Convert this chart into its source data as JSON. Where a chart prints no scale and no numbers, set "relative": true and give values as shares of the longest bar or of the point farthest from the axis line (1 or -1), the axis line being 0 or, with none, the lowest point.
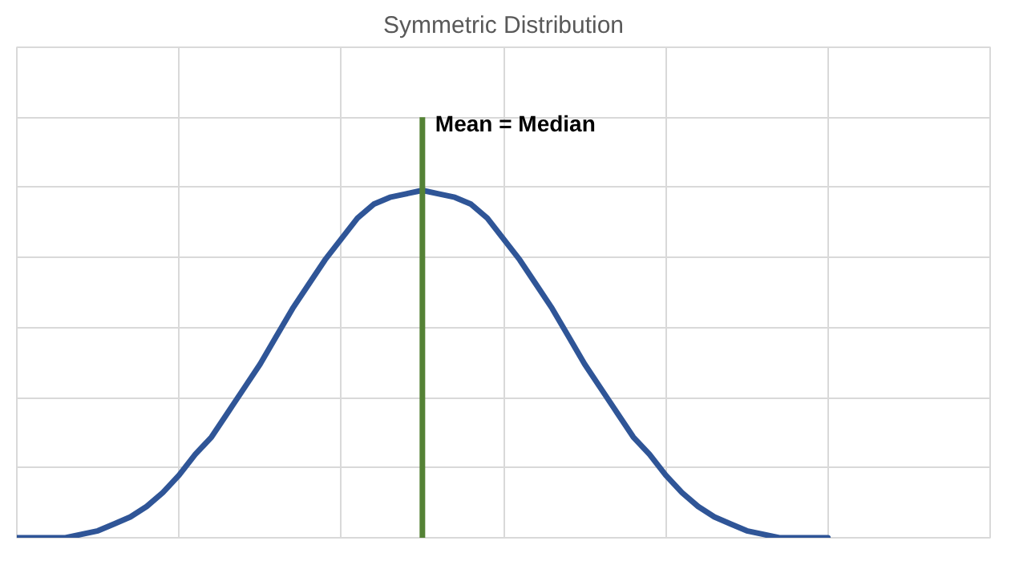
{
  "chart_data": {
    "type": "line",
    "title": "Symmetric Distribution",
    "relative": true,
    "grid": true,
    "categories": [
      null,
      null,
      null,
      null,
      null,
      null,
      null,
      null,
      null,
      null,
      null,
      null,
      null,
      null,
      null,
      null,
      null,
      null,
      null,
      null,
      null,
      null,
      null,
      null,
      null,
      null,
      null,
      null,
      null,
      null,
      null,
      null,
      null,
      null,
      null,
      null,
      null,
      null,
      null,
      null,
      null,
      null,
      null,
      null,
      null,
      null,
      null,
      null,
      null,
      null,
      null,
      null,
      null,
      null,
      null,
      null,
      null,
      null,
      null,
      null,
      null
    ],
    "series": [
      {
        "color": "#2f5597",
        "values": [
          0,
          0,
          0,
          0,
          0.01,
          0.02,
          0.04,
          0.06,
          0.09,
          0.13,
          0.18,
          0.24,
          0.29,
          0.36,
          0.43,
          0.5,
          0.58,
          0.66,
          0.73,
          0.8,
          0.86,
          0.92,
          0.96,
          0.98,
          0.99,
          1.0,
          0.99,
          0.98,
          0.96,
          0.92,
          0.86,
          0.8,
          0.73,
          0.66,
          0.58,
          0.5,
          0.43,
          0.36,
          0.29,
          0.24,
          0.18,
          0.13,
          0.09,
          0.06,
          0.04,
          0.02,
          0.01,
          0,
          0,
          0,
          0,
          null,
          null,
          null,
          null,
          null,
          null,
          null,
          null,
          null,
          null
        ]
      }
    ],
    "annotations": [
      "Mean = Median"
    ]
  }
}
